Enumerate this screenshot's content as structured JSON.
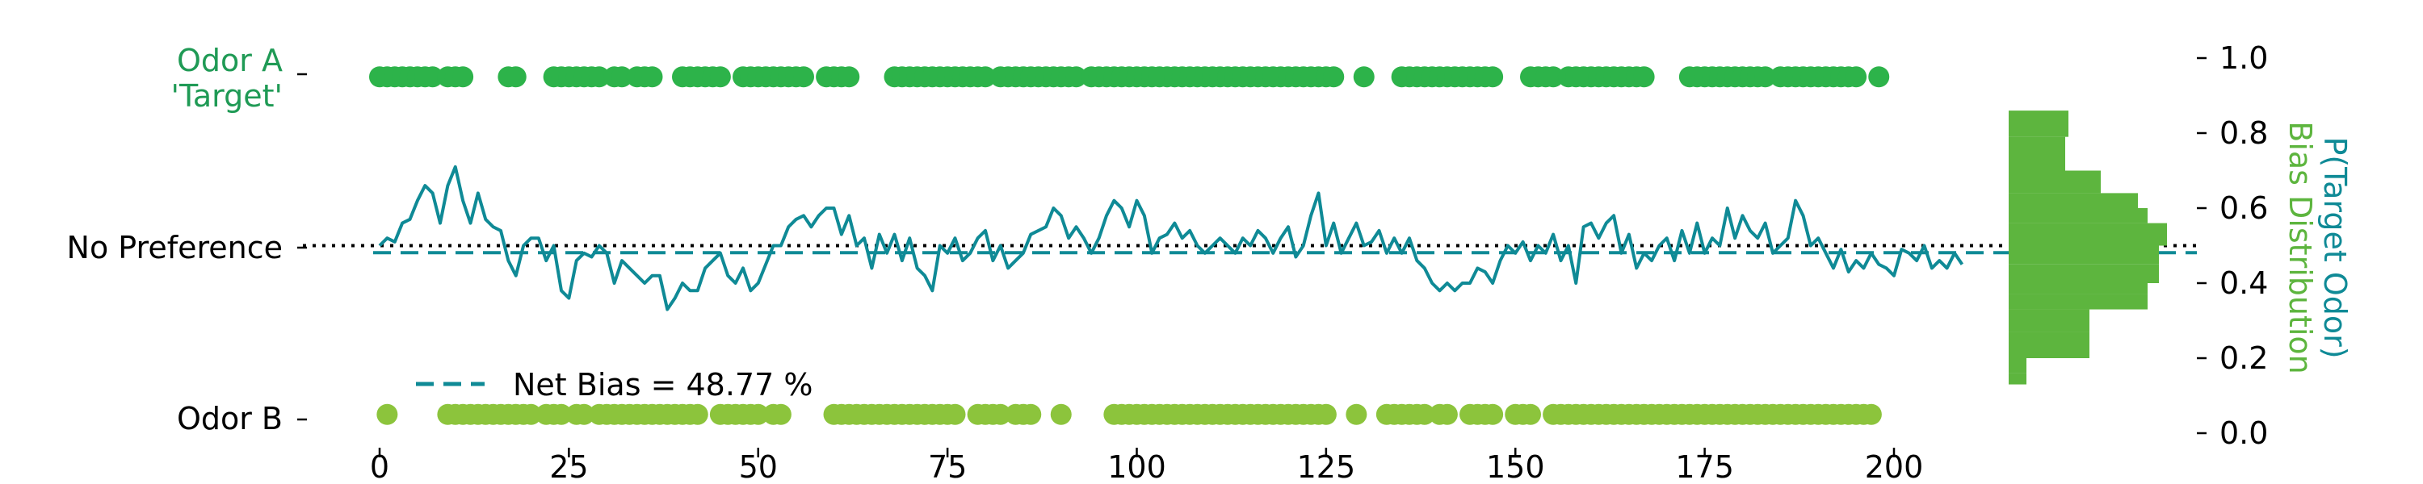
{
  "chart_data": {
    "type": "line",
    "x_ticks": [
      0,
      25,
      50,
      75,
      100,
      125,
      150,
      175,
      200
    ],
    "xlim": [
      -1,
      201
    ],
    "ylim": [
      0,
      1
    ],
    "left_y_labels": {
      "odor_a": "Odor A\n'Target'",
      "no_pref": "No Preference",
      "odor_b": "Odor B"
    },
    "right_y_ticks": [
      "0.0",
      "0.2",
      "0.4",
      "0.6",
      "0.8",
      "1.0"
    ],
    "right_y_tick_values": [
      0.0,
      0.2,
      0.4,
      0.6,
      0.8,
      1.0
    ],
    "right_axis_label_1": "P(Target Odor)",
    "right_axis_label_2": "Bias Distribution",
    "legend": {
      "label": "Net Bias = 48.77 %",
      "placement": "lower-left"
    },
    "net_bias": 0.4877,
    "no_preference": 0.5,
    "colors": {
      "odor_a": "#2db34a",
      "odor_b": "#8cc43c",
      "line": "#0f8a96",
      "hist": "#5db53e",
      "label_a": "#1f9a55",
      "label_line": "#0f8a96",
      "label_hist": "#5db53e"
    },
    "odor_a_trials": [
      0,
      1,
      2,
      3,
      4,
      5,
      6,
      7,
      9,
      10,
      11,
      17,
      18,
      23,
      24,
      25,
      26,
      27,
      28,
      29,
      31,
      32,
      34,
      35,
      36,
      40,
      41,
      42,
      43,
      44,
      45,
      48,
      49,
      50,
      51,
      52,
      53,
      54,
      55,
      56,
      59,
      60,
      61,
      62,
      68,
      69,
      70,
      71,
      72,
      73,
      74,
      75,
      76,
      77,
      78,
      79,
      80,
      82,
      83,
      84,
      85,
      86,
      87,
      88,
      89,
      90,
      91,
      92,
      94,
      95,
      96,
      97,
      98,
      99,
      100,
      101,
      102,
      103,
      104,
      105,
      106,
      107,
      108,
      109,
      110,
      111,
      112,
      113,
      114,
      115,
      116,
      117,
      118,
      119,
      120,
      121,
      122,
      123,
      124,
      125,
      126,
      130,
      135,
      136,
      137,
      138,
      139,
      140,
      141,
      142,
      143,
      144,
      145,
      146,
      147,
      152,
      153,
      154,
      155,
      157,
      158,
      159,
      160,
      161,
      162,
      163,
      164,
      165,
      166,
      167,
      173,
      174,
      175,
      176,
      177,
      178,
      179,
      180,
      181,
      182,
      183,
      185,
      186,
      187,
      188,
      189,
      190,
      191,
      192,
      193,
      194,
      195,
      198
    ],
    "odor_b_trials": [
      1,
      9,
      10,
      11,
      12,
      13,
      14,
      15,
      16,
      17,
      18,
      19,
      20,
      22,
      23,
      24,
      26,
      27,
      29,
      30,
      31,
      32,
      33,
      34,
      35,
      36,
      37,
      38,
      39,
      40,
      41,
      42,
      45,
      46,
      47,
      48,
      49,
      50,
      52,
      53,
      60,
      61,
      62,
      63,
      64,
      65,
      66,
      67,
      68,
      69,
      70,
      71,
      72,
      73,
      74,
      75,
      76,
      79,
      80,
      81,
      82,
      84,
      85,
      86,
      90,
      97,
      98,
      99,
      100,
      101,
      102,
      103,
      104,
      105,
      106,
      107,
      108,
      109,
      110,
      111,
      112,
      113,
      114,
      115,
      116,
      117,
      118,
      119,
      120,
      121,
      122,
      123,
      124,
      125,
      129,
      133,
      134,
      135,
      136,
      137,
      138,
      140,
      141,
      144,
      145,
      146,
      147,
      150,
      151,
      152,
      155,
      156,
      157,
      158,
      159,
      160,
      161,
      162,
      163,
      164,
      165,
      166,
      167,
      168,
      169,
      170,
      171,
      172,
      173,
      174,
      175,
      176,
      177,
      178,
      179,
      180,
      181,
      182,
      183,
      184,
      185,
      186,
      187,
      188,
      189,
      190,
      191,
      192,
      193,
      194,
      195,
      196,
      197
    ],
    "bias_series": [
      0.5,
      0.52,
      0.51,
      0.56,
      0.57,
      0.62,
      0.66,
      0.64,
      0.56,
      0.66,
      0.71,
      0.62,
      0.56,
      0.64,
      0.57,
      0.55,
      0.54,
      0.46,
      0.42,
      0.5,
      0.52,
      0.52,
      0.46,
      0.5,
      0.38,
      0.36,
      0.46,
      0.48,
      0.47,
      0.5,
      0.48,
      0.4,
      0.46,
      0.44,
      0.42,
      0.4,
      0.42,
      0.42,
      0.33,
      0.36,
      0.4,
      0.38,
      0.38,
      0.44,
      0.46,
      0.48,
      0.42,
      0.4,
      0.44,
      0.38,
      0.4,
      0.45,
      0.5,
      0.5,
      0.55,
      0.57,
      0.58,
      0.55,
      0.58,
      0.6,
      0.6,
      0.53,
      0.58,
      0.5,
      0.52,
      0.44,
      0.53,
      0.48,
      0.53,
      0.46,
      0.52,
      0.44,
      0.42,
      0.38,
      0.5,
      0.48,
      0.52,
      0.46,
      0.48,
      0.52,
      0.54,
      0.46,
      0.5,
      0.44,
      0.46,
      0.48,
      0.53,
      0.54,
      0.55,
      0.6,
      0.58,
      0.52,
      0.55,
      0.52,
      0.48,
      0.52,
      0.58,
      0.62,
      0.6,
      0.55,
      0.62,
      0.58,
      0.48,
      0.52,
      0.53,
      0.56,
      0.52,
      0.54,
      0.5,
      0.48,
      0.5,
      0.52,
      0.5,
      0.48,
      0.52,
      0.5,
      0.54,
      0.52,
      0.48,
      0.52,
      0.55,
      0.47,
      0.5,
      0.58,
      0.64,
      0.5,
      0.56,
      0.48,
      0.52,
      0.56,
      0.5,
      0.51,
      0.54,
      0.48,
      0.52,
      0.48,
      0.52,
      0.46,
      0.44,
      0.4,
      0.38,
      0.4,
      0.38,
      0.4,
      0.4,
      0.44,
      0.43,
      0.4,
      0.46,
      0.5,
      0.48,
      0.51,
      0.46,
      0.5,
      0.48,
      0.53,
      0.46,
      0.5,
      0.4,
      0.55,
      0.56,
      0.52,
      0.56,
      0.58,
      0.48,
      0.53,
      0.44,
      0.48,
      0.46,
      0.5,
      0.52,
      0.46,
      0.54,
      0.48,
      0.56,
      0.48,
      0.52,
      0.5,
      0.6,
      0.52,
      0.58,
      0.54,
      0.52,
      0.56,
      0.48,
      0.5,
      0.52,
      0.62,
      0.58,
      0.5,
      0.52,
      0.48,
      0.44,
      0.49,
      0.43,
      0.46,
      0.44,
      0.48,
      0.45,
      0.44,
      0.42,
      0.49,
      0.48,
      0.46,
      0.5,
      0.44,
      0.46,
      0.44,
      0.48,
      0.45
    ],
    "histogram": {
      "bin_edges": [
        0.13,
        0.16,
        0.2,
        0.27,
        0.33,
        0.37,
        0.4,
        0.45,
        0.5,
        0.56,
        0.6,
        0.64,
        0.7,
        0.79,
        0.86
      ],
      "counts": [
        1.1,
        1.1,
        5.0,
        5.0,
        8.6,
        8.6,
        9.3,
        9.3,
        9.8,
        8.6,
        8.0,
        5.7,
        3.5,
        3.7
      ]
    }
  }
}
